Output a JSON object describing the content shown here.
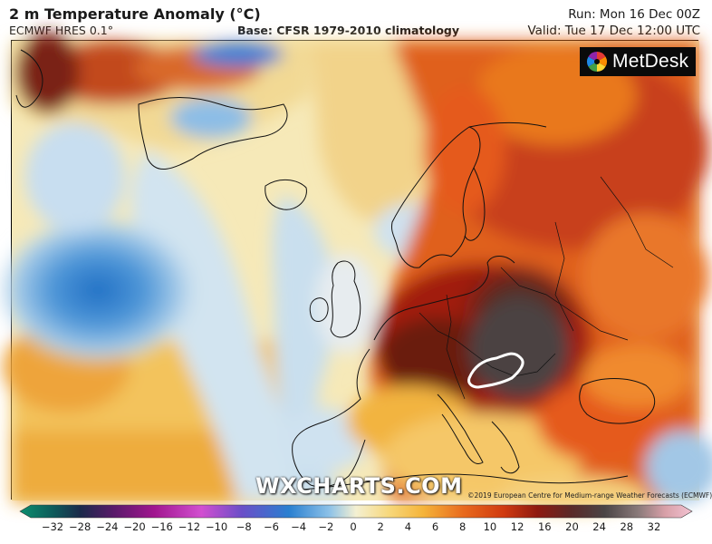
{
  "header": {
    "title": "2 m Temperature Anomaly (°C)",
    "model": "ECMWF HRES 0.1°",
    "base": "Base: CFSR 1979-2010 climatology",
    "run": "Run: Mon 16 Dec 00Z",
    "valid": "Valid: Tue 17 Dec 12:00 UTC"
  },
  "logo": {
    "text": "MetDesk",
    "icon": "color-wheel-icon"
  },
  "watermark": "WXCHARTS.COM",
  "copyright": "©2019 European Centre for Medium-range Weather Forecasts (ECMWF)",
  "legend": {
    "ticks": [
      "−32",
      "−28",
      "−24",
      "−20",
      "−16",
      "−12",
      "−10",
      "−8",
      "−6",
      "−4",
      "−2",
      "0",
      "2",
      "4",
      "6",
      "8",
      "10",
      "12",
      "16",
      "20",
      "24",
      "28",
      "32"
    ],
    "colors": {
      "very_cold": "#0c8f6e",
      "cold": "#2a7fd0",
      "cool": "#bcd9ec",
      "neutral": "#f4f0d2",
      "warm": "#f5b43a",
      "hot": "#d03a10",
      "very_hot": "#6b1a10",
      "extreme": "#4a4545"
    }
  }
}
